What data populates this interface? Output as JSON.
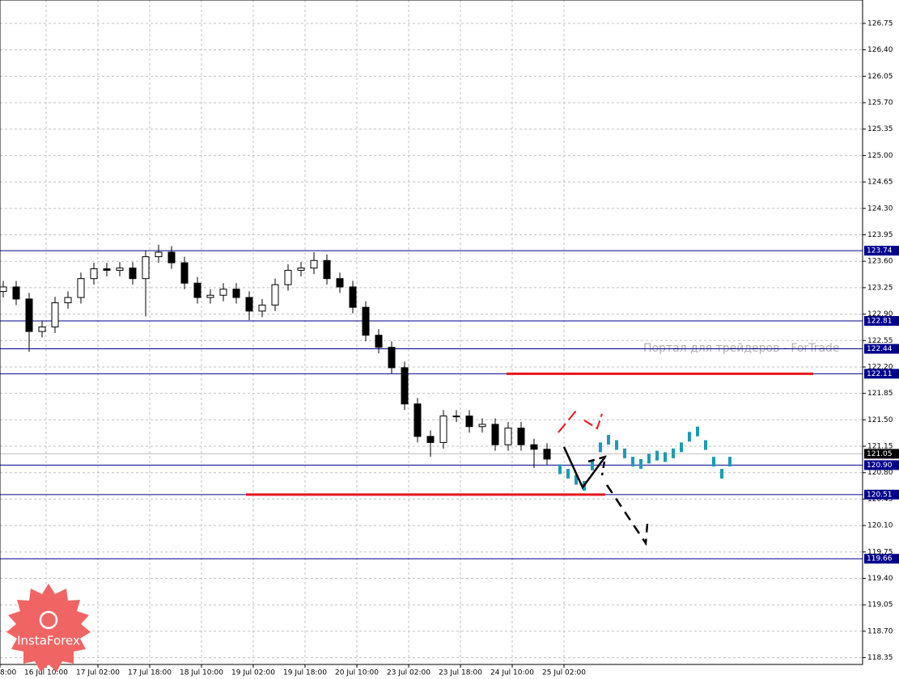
{
  "chart_data": {
    "type": "candlestick",
    "ylim": [
      118.26,
      127.06
    ],
    "yticks": [
      126.75,
      {
        "value": 126.4,
        "label": "126.40"
      },
      {
        "value": 126.05,
        "label": "126.05"
      },
      {
        "value": 125.7,
        "label": "125.70"
      },
      125.35,
      {
        "value": 125.0,
        "label": "125.00"
      },
      124.65,
      {
        "value": 124.3,
        "label": "124.30"
      },
      123.95,
      {
        "value": 123.6,
        "label": "123.60"
      },
      123.25,
      {
        "value": 122.9,
        "label": "122.90"
      },
      122.55,
      {
        "value": 122.2,
        "label": "122.20"
      },
      121.85,
      {
        "value": 121.5,
        "label": "121.50"
      },
      121.15,
      {
        "value": 120.8,
        "label": "120.80"
      },
      120.45,
      {
        "value": 120.1,
        "label": "120.10"
      },
      119.75,
      {
        "value": 119.4,
        "label": "119.40"
      },
      119.05,
      {
        "value": 118.7,
        "label": "118.70"
      },
      118.35
    ],
    "x_labels": [
      "8:00",
      "16 Jul 10:00",
      "17 Jul 02:00",
      "17 Jul 18:00",
      "18 Jul 10:00",
      "19 Jul 02:00",
      "19 Jul 18:00",
      "20 Jul 10:00",
      "23 Jul 02:00",
      "23 Jul 18:00",
      "24 Jul 10:00",
      "25 Jul 02:00"
    ],
    "grid": true,
    "open": [
      123.2,
      123.26,
      123.1,
      122.67,
      122.73,
      123.05,
      123.12,
      123.37,
      123.5,
      123.48,
      123.51,
      123.37,
      123.66,
      123.72,
      123.58,
      123.31,
      123.12,
      123.15,
      123.23,
      123.12,
      122.94,
      123.02,
      123.29,
      123.48,
      123.51,
      123.61,
      123.37,
      123.26,
      122.99,
      122.62,
      122.46,
      122.19,
      121.71,
      121.28,
      121.2,
      121.55,
      121.55,
      121.41,
      121.44,
      121.17,
      121.39,
      121.17,
      121.11
    ],
    "high": [
      123.34,
      123.34,
      123.18,
      122.81,
      123.13,
      123.2,
      123.45,
      123.58,
      123.58,
      123.59,
      123.59,
      123.74,
      123.82,
      123.8,
      123.66,
      123.39,
      123.23,
      123.31,
      123.31,
      123.2,
      123.1,
      123.37,
      123.56,
      123.59,
      123.72,
      123.69,
      123.45,
      123.34,
      123.07,
      122.7,
      122.54,
      122.27,
      121.79,
      121.36,
      121.63,
      121.63,
      121.63,
      121.52,
      121.52,
      121.47,
      121.47,
      121.25,
      121.19
    ],
    "low": [
      123.12,
      123.02,
      122.4,
      122.59,
      122.65,
      122.97,
      123.04,
      123.29,
      123.4,
      123.4,
      123.29,
      122.87,
      123.58,
      123.5,
      123.23,
      123.04,
      123.04,
      123.07,
      123.04,
      122.82,
      122.86,
      122.94,
      123.21,
      123.4,
      123.43,
      123.29,
      123.18,
      122.91,
      122.54,
      122.38,
      122.11,
      121.63,
      121.2,
      121.01,
      121.12,
      121.47,
      121.33,
      121.33,
      121.09,
      121.09,
      121.09,
      120.86,
      120.9
    ],
    "close": [
      123.26,
      123.1,
      122.67,
      122.73,
      123.05,
      123.12,
      123.37,
      123.5,
      123.48,
      123.51,
      123.37,
      123.66,
      123.72,
      123.58,
      123.31,
      123.12,
      123.15,
      123.23,
      123.12,
      122.94,
      123.02,
      123.29,
      123.48,
      123.51,
      123.61,
      123.37,
      123.26,
      122.99,
      122.62,
      122.46,
      122.19,
      121.71,
      121.28,
      121.2,
      121.55,
      121.55,
      121.41,
      121.44,
      121.17,
      121.39,
      121.17,
      121.11,
      120.98
    ],
    "forecast": {
      "color": "#1a9bb5",
      "values": [
        120.91,
        120.85,
        120.77,
        120.69,
        120.96,
        121.2,
        121.3,
        121.23,
        121.12,
        121.01,
        120.98,
        121.05,
        121.09,
        121.07,
        121.12,
        121.2,
        121.34,
        121.41,
        121.23,
        121.01,
        120.85,
        121.01
      ]
    },
    "levels": {
      "color": "#00008b",
      "values": [
        123.74,
        122.81,
        122.44,
        122.11,
        {
          "value": 120.9,
          "label": "120.90"
        },
        120.51,
        119.66
      ]
    },
    "current_price": 121.05,
    "red_levels": {
      "color": "#e8141c",
      "values": [
        122.11,
        120.51
      ]
    },
    "watermark": "Портал для трейдеров - ForTrade",
    "logo": "InstaForex"
  }
}
